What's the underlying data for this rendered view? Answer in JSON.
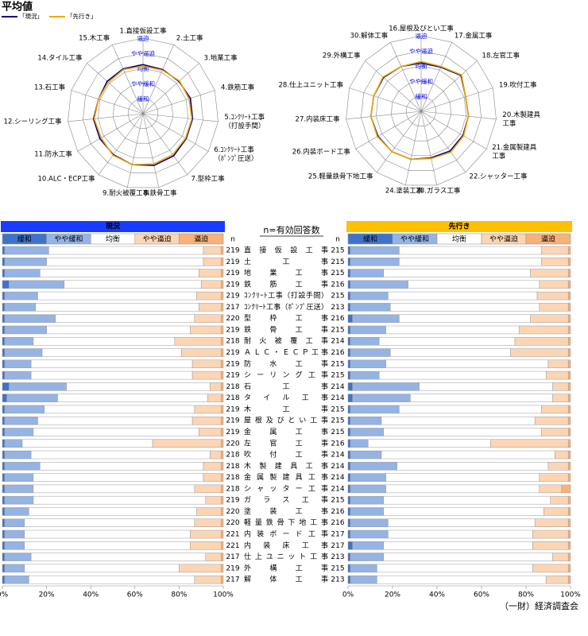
{
  "title": "平均値",
  "footer": "（一財）経済調査会",
  "chart_data": [
    {
      "type": "radar",
      "categories": [
        "1.直接仮設工事",
        "2.土工事",
        "3.地業工事",
        "4.鉄筋工事",
        "5.ｺﾝｸﾘｰﾄ工事\n（打設手間）",
        "6.ｺﾝｸﾘｰﾄ工事\n（ﾎﾟﾝﾌﾟ圧送）",
        "7.型枠工事",
        "8.鉄骨工事",
        "9.耐火被覆工事",
        "10.ALC・ECP工事",
        "11.防水工事",
        "12.シーリング工事",
        "13.石工事",
        "14.タイル工事",
        "15.木工事"
      ],
      "rlim": [
        0,
        5
      ],
      "rticks": [
        {
          "value": 1,
          "label": "緩和"
        },
        {
          "value": 2,
          "label": "やや緩和"
        },
        {
          "value": 3,
          "label": "均衡"
        },
        {
          "value": 4,
          "label": "やや逼迫"
        },
        {
          "value": 5,
          "label": "逼迫"
        }
      ],
      "series": [
        {
          "name": "「現況」",
          "color": "#00008b",
          "values": [
            3.25,
            3.2,
            3.2,
            3.3,
            3.3,
            3.3,
            3.45,
            3.5,
            3.45,
            3.35,
            3.3,
            3.3,
            3.1,
            3.2,
            3.25
          ]
        },
        {
          "name": "「先行き」",
          "color": "#f0a800",
          "values": [
            3.15,
            3.15,
            3.25,
            3.2,
            3.25,
            3.25,
            3.35,
            3.4,
            3.45,
            3.4,
            3.2,
            3.25,
            3.1,
            3.1,
            3.2
          ]
        }
      ]
    },
    {
      "type": "radar",
      "categories": [
        "16.屋根及びとい工事",
        "17.金属工事",
        "18.左官工事",
        "19.吹付工事",
        "20.木製建具\n工事",
        "21.金属製建具\n工事",
        "22.シャッター工事",
        "23.ガラス工事",
        "24.塗装工事",
        "25.軽量鉄骨下地工事",
        "26.内装ボード工事",
        "27.内装床工事",
        "28.仕上ユニット工事",
        "29.外構工事",
        "30.解体工事"
      ],
      "rlim": [
        0,
        5
      ],
      "rticks": [
        {
          "value": 1,
          "label": "緩和"
        },
        {
          "value": 2,
          "label": "やや緩和"
        },
        {
          "value": 3,
          "label": "均衡"
        },
        {
          "value": 4,
          "label": "やや逼迫"
        },
        {
          "value": 5,
          "label": "逼迫"
        }
      ],
      "series": [
        {
          "color": "#00008b",
          "values": [
            3.2,
            3.2,
            3.55,
            3.1,
            3.15,
            3.2,
            3.25,
            3.15,
            3.25,
            3.3,
            3.3,
            3.35,
            3.3,
            3.35,
            3.25
          ]
        },
        {
          "color": "#f0a800",
          "values": [
            3.3,
            3.25,
            3.6,
            3.1,
            3.15,
            3.25,
            3.35,
            3.2,
            3.25,
            3.3,
            3.35,
            3.35,
            3.3,
            3.4,
            3.25
          ]
        }
      ]
    },
    {
      "type": "stacked_bar_panels",
      "n_label": "n=有効回答数",
      "categories": [
        "直接仮設工事",
        "土工事",
        "地業工事",
        "鉄筋工事",
        "ｺﾝｸﾘｰﾄ工事（打設手間）",
        "ｺﾝｸﾘｰﾄ工事（ﾎﾟﾝﾌﾟ圧送）",
        "型枠工事",
        "鉄骨工事",
        "耐火被覆工事",
        "ＡＬＣ・ＥＣＰ工事",
        "防水工事",
        "シーリング工事",
        "石工事",
        "タイル工事",
        "木工事",
        "屋根及びとい工事",
        "金属工事",
        "左官工事",
        "吹付工事",
        "木製建具工事",
        "金属製建具工事",
        "シャッター工事",
        "ガラス工事",
        "塗装工事",
        "軽量鉄骨下地工事",
        "内装ボード工事",
        "内装床工事",
        "仕上ユニット工事",
        "外構工事",
        "解体工事"
      ],
      "panels": [
        {
          "title": "現況",
          "color": "#1a3cff",
          "n_header": "n",
          "n": [
            219,
            219,
            219,
            219,
            219,
            217,
            220,
            219,
            218,
            219,
            219,
            219,
            218,
            218,
            219,
            219,
            219,
            220,
            218,
            218,
            218,
            218,
            219,
            220,
            220,
            221,
            221,
            217,
            219,
            217
          ],
          "xlim": [
            0,
            100
          ],
          "xticks": [
            {
              "value": 0,
              "label": "0%"
            },
            {
              "value": 20,
              "label": "20%"
            },
            {
              "value": 40,
              "label": "40%"
            },
            {
              "value": 60,
              "label": "60%"
            },
            {
              "value": 80,
              "label": "80%"
            },
            {
              "value": 100,
              "label": "100%"
            }
          ],
          "series": [
            {
              "name": "緩和",
              "color": "#3f73c9",
              "values": [
                1,
                1,
                1,
                3,
                1,
                1,
                1,
                1,
                1,
                1,
                1,
                1,
                3,
                2,
                1,
                1,
                1,
                1,
                1,
                1,
                1,
                1,
                1,
                1,
                1,
                1,
                1,
                1,
                1,
                1
              ]
            },
            {
              "name": "やや緩和",
              "color": "#95b3e3",
              "values": [
                20,
                19,
                16,
                25,
                15,
                14,
                23,
                19,
                13,
                17,
                12,
                12,
                26,
                23,
                18,
                15,
                13,
                8,
                12,
                16,
                13,
                13,
                13,
                11,
                9,
                9,
                9,
                12,
                9,
                11
              ]
            },
            {
              "name": "均衡",
              "color": "#ffffff",
              "values": [
                70,
                71,
                72,
                62,
                72,
                74,
                63,
                65,
                64,
                63,
                73,
                73,
                65,
                68,
                68,
                70,
                75,
                59,
                81,
                74,
                77,
                73,
                78,
                76,
                77,
                75,
                75,
                79,
                70,
                75
              ]
            },
            {
              "name": "やや逼迫",
              "color": "#fcd5b4",
              "values": [
                8,
                8,
                10,
                9,
                11,
                10,
                12,
                14,
                21,
                18,
                13,
                13,
                5,
                6,
                12,
                13,
                10,
                31,
                5,
                8,
                8,
                12,
                7,
                11,
                12,
                14,
                14,
                7,
                19,
                12
              ]
            },
            {
              "name": "逼迫",
              "color": "#f7b27a",
              "values": [
                1,
                1,
                1,
                1,
                1,
                1,
                1,
                1,
                1,
                1,
                1,
                1,
                1,
                1,
                1,
                1,
                1,
                1,
                1,
                1,
                1,
                1,
                1,
                1,
                1,
                1,
                1,
                1,
                1,
                1
              ]
            }
          ]
        },
        {
          "title": "先行き",
          "color": "#ffc000",
          "n_header": "n",
          "n": [
            215,
            215,
            215,
            216,
            215,
            213,
            216,
            215,
            214,
            216,
            215,
            215,
            214,
            214,
            215,
            215,
            215,
            216,
            214,
            214,
            214,
            214,
            215,
            216,
            216,
            217,
            217,
            213,
            215,
            213
          ],
          "xlim": [
            0,
            100
          ],
          "xticks": [
            {
              "value": 0,
              "label": "0%"
            },
            {
              "value": 20,
              "label": "20%"
            },
            {
              "value": 40,
              "label": "40%"
            },
            {
              "value": 60,
              "label": "60%"
            },
            {
              "value": 80,
              "label": "80%"
            },
            {
              "value": 100,
              "label": "100%"
            }
          ],
          "series": [
            {
              "name": "緩和",
              "color": "#3f73c9",
              "values": [
                1,
                1,
                1,
                1,
                1,
                1,
                2,
                1,
                1,
                1,
                1,
                1,
                2,
                2,
                1,
                1,
                1,
                1,
                1,
                1,
                1,
                1,
                1,
                1,
                1,
                1,
                2,
                1,
                1,
                1
              ]
            },
            {
              "name": "やや緩和",
              "color": "#95b3e3",
              "values": [
                22,
                22,
                15,
                26,
                17,
                18,
                21,
                16,
                13,
                18,
                16,
                13,
                30,
                26,
                22,
                14,
                15,
                8,
                14,
                21,
                16,
                16,
                15,
                15,
                17,
                17,
                14,
                15,
                12,
                12
              ]
            },
            {
              "name": "均衡",
              "color": "#ffffff",
              "values": [
                64,
                64,
                66,
                59,
                67,
                67,
                59,
                60,
                61,
                54,
                73,
                75,
                60,
                64,
                64,
                69,
                71,
                55,
                78,
                68,
                69,
                69,
                75,
                72,
                66,
                65,
                67,
                76,
                70,
                76
              ]
            },
            {
              "name": "やや逼迫",
              "color": "#fcd5b4",
              "values": [
                12,
                12,
                17,
                13,
                14,
                13,
                17,
                22,
                24,
                26,
                9,
                10,
                7,
                7,
                12,
                15,
                12,
                35,
                6,
                9,
                13,
                10,
                8,
                11,
                15,
                16,
                16,
                7,
                16,
                10
              ]
            },
            {
              "name": "逼迫",
              "color": "#f7b27a",
              "values": [
                1,
                1,
                1,
                1,
                1,
                1,
                1,
                1,
                1,
                1,
                1,
                1,
                1,
                1,
                1,
                1,
                1,
                1,
                1,
                1,
                1,
                4,
                1,
                1,
                1,
                1,
                1,
                1,
                1,
                1
              ]
            }
          ]
        }
      ]
    }
  ]
}
